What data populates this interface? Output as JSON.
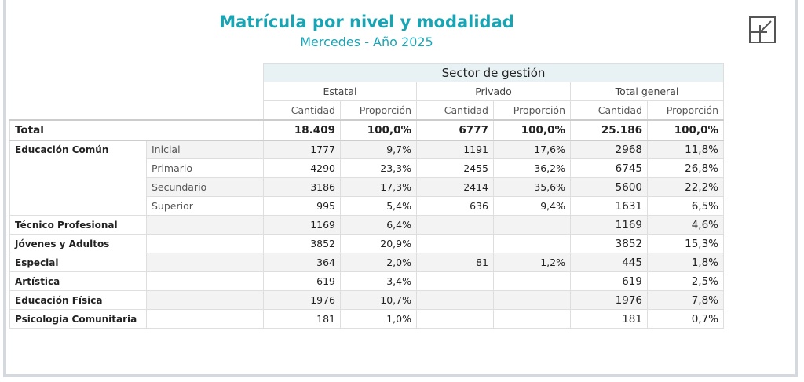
{
  "title": "Matrícula por nivel y modalidad",
  "subtitle": "Mercedes - Año 2025",
  "collapse_icon": "collapse-arrow-icon",
  "header": {
    "sector": "Sector de gestión",
    "groups": [
      "Estatal",
      "Privado",
      "Total general"
    ],
    "sub": [
      "Cantidad",
      "Proporción",
      "Cantidad",
      "Proporción",
      "Cantidad",
      "Proporción"
    ]
  },
  "total": {
    "label": "Total",
    "values": [
      "18.409",
      "100,0%",
      "6777",
      "100,0%",
      "25.186",
      "100,0%"
    ]
  },
  "rows": [
    {
      "l1": "Educación Común",
      "l2": "Inicial",
      "values": [
        "1777",
        "9,7%",
        "1191",
        "17,6%",
        "2968",
        "11,8%"
      ]
    },
    {
      "l1": "",
      "l2": "Primario",
      "values": [
        "4290",
        "23,3%",
        "2455",
        "36,2%",
        "6745",
        "26,8%"
      ]
    },
    {
      "l1": "",
      "l2": "Secundario",
      "values": [
        "3186",
        "17,3%",
        "2414",
        "35,6%",
        "5600",
        "22,2%"
      ]
    },
    {
      "l1": "",
      "l2": "Superior",
      "values": [
        "995",
        "5,4%",
        "636",
        "9,4%",
        "1631",
        "6,5%"
      ]
    },
    {
      "l1": "Técnico Profesional",
      "l2": "",
      "values": [
        "1169",
        "6,4%",
        "",
        "",
        "1169",
        "4,6%"
      ]
    },
    {
      "l1": "Jóvenes y Adultos",
      "l2": "",
      "values": [
        "3852",
        "20,9%",
        "",
        "",
        "3852",
        "15,3%"
      ]
    },
    {
      "l1": "Especial",
      "l2": "",
      "values": [
        "364",
        "2,0%",
        "81",
        "1,2%",
        "445",
        "1,8%"
      ]
    },
    {
      "l1": "Artística",
      "l2": "",
      "values": [
        "619",
        "3,4%",
        "",
        "",
        "619",
        "2,5%"
      ]
    },
    {
      "l1": "Educación Física",
      "l2": "",
      "values": [
        "1976",
        "10,7%",
        "",
        "",
        "1976",
        "7,8%"
      ]
    },
    {
      "l1": "Psicología Comunitaria",
      "l2": "",
      "values": [
        "181",
        "1,0%",
        "",
        "",
        "181",
        "0,7%"
      ]
    }
  ]
}
